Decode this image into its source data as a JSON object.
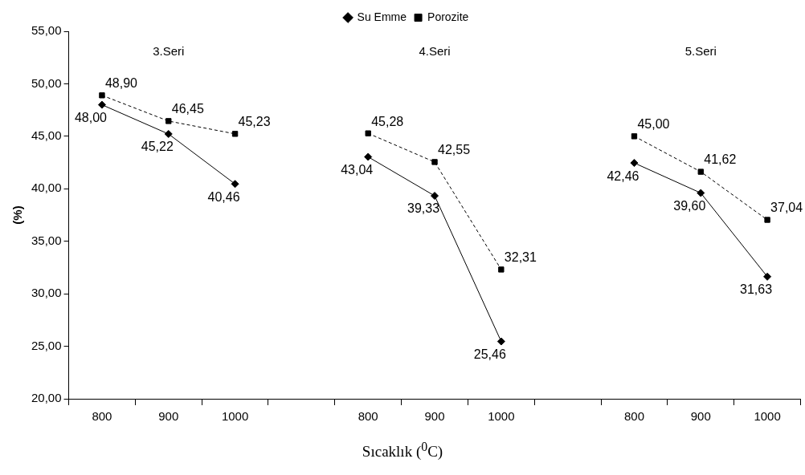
{
  "chart_data": {
    "type": "line",
    "xlabel": "Sıcaklık ($^{0}$C)",
    "ylabel": "(%)",
    "categories": [
      "800",
      "900",
      "1000",
      null,
      "800",
      "900",
      "1000",
      null,
      "800",
      "900",
      "1000"
    ],
    "series": [
      {
        "name": "Su Emme",
        "color": "#000000",
        "marker": "diamond",
        "line_style": "solid",
        "values": [
          48.0,
          45.22,
          40.46,
          null,
          43.04,
          39.33,
          25.46,
          null,
          42.46,
          39.6,
          31.63
        ],
        "value_labels": [
          "48,00",
          "45,22",
          "40,46",
          null,
          "43,04",
          "39,33",
          "25,46",
          null,
          "42,46",
          "39,60",
          "31,63"
        ]
      },
      {
        "name": "Porozite",
        "color": "#000000",
        "marker": "square",
        "line_style": "dashed",
        "values": [
          48.9,
          46.45,
          45.23,
          null,
          45.28,
          42.55,
          32.31,
          null,
          45.0,
          41.62,
          37.04
        ],
        "value_labels": [
          "48,90",
          "46,45",
          "45,23",
          null,
          "45,28",
          "42,55",
          "32,31",
          null,
          "45,00",
          "41,62",
          "37,04"
        ]
      }
    ],
    "ylim": [
      20,
      55
    ],
    "yticks": [
      {
        "value": 20,
        "label": "20,00"
      },
      {
        "value": 25,
        "label": "25,00"
      },
      {
        "value": 30,
        "label": "30,00"
      },
      {
        "value": 35,
        "label": "35,00"
      },
      {
        "value": 40,
        "label": "40,00"
      },
      {
        "value": 45,
        "label": "45,00"
      },
      {
        "value": 50,
        "label": "50,00"
      },
      {
        "value": 55,
        "label": "55,00"
      }
    ],
    "annotations": [
      "3.Seri",
      "4.Seri",
      "5.Seri"
    ],
    "legend": "top",
    "grid": false
  }
}
